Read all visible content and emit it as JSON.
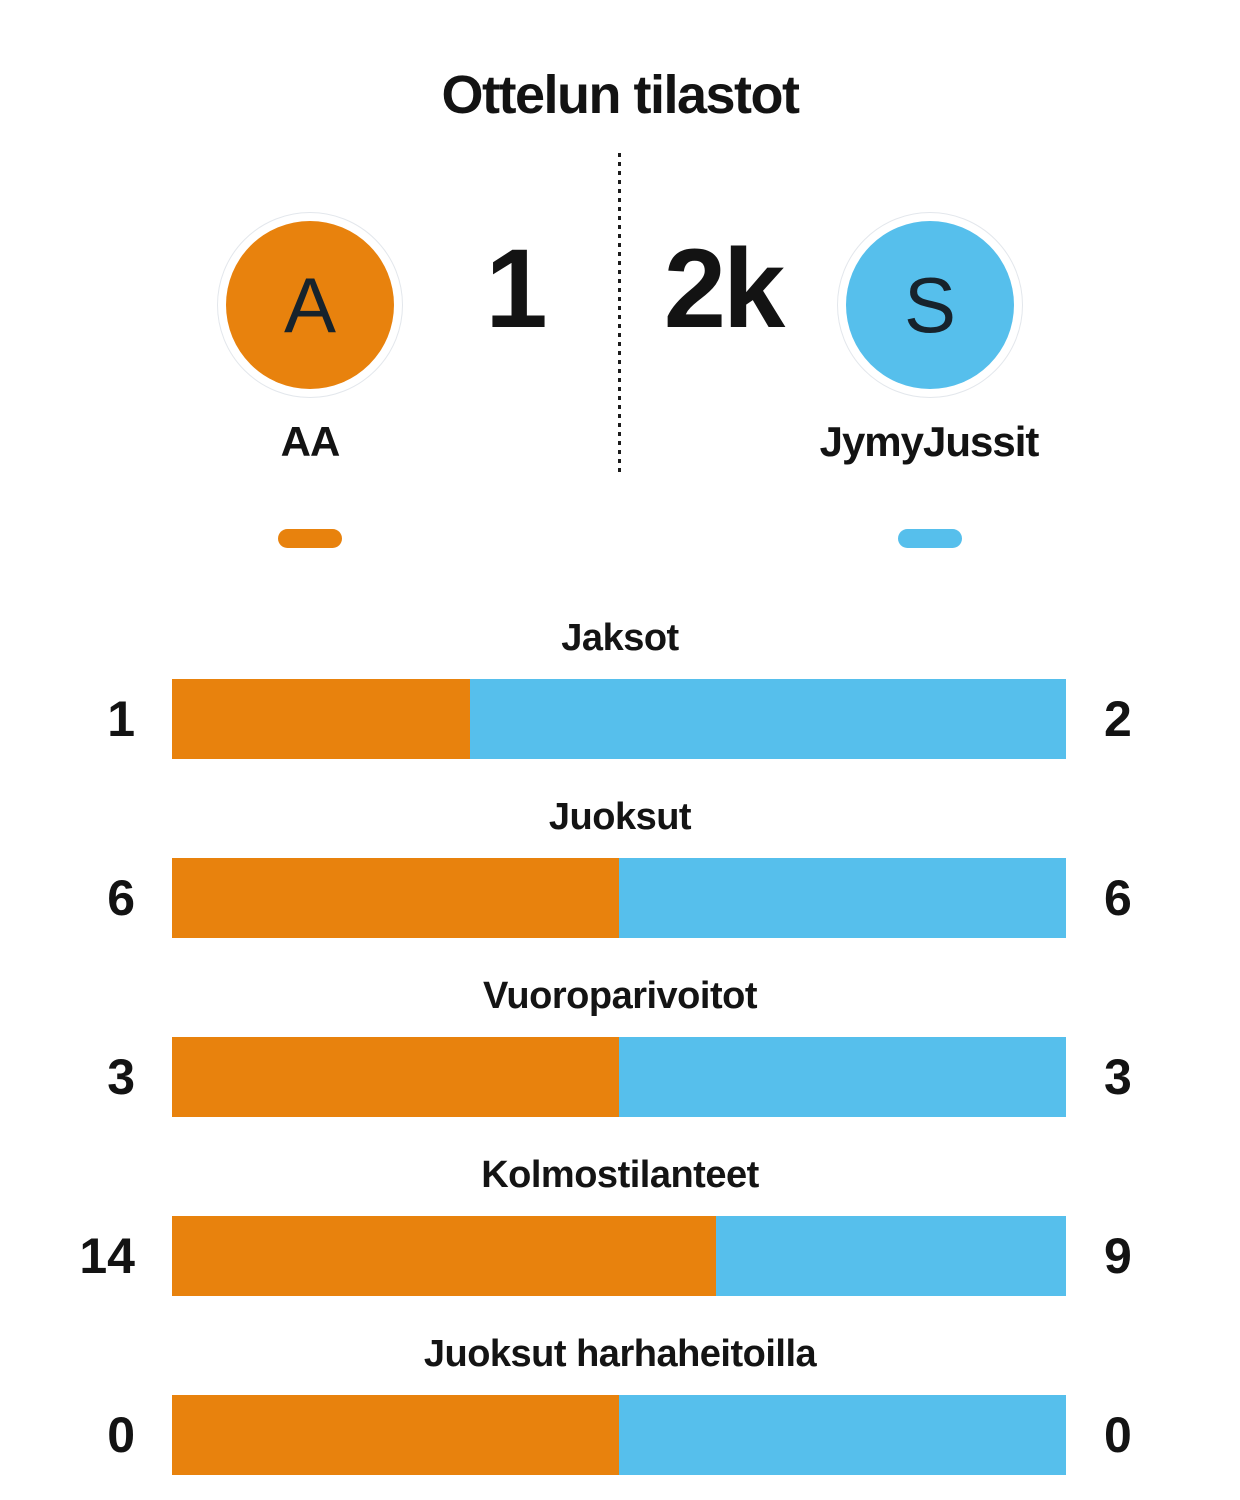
{
  "title": "Ottelun tilastot",
  "score": {
    "home": "1",
    "away": "2k"
  },
  "teams": {
    "home": {
      "name": "AA",
      "initial": "A",
      "color": "#E8820D"
    },
    "away": {
      "name": "JymyJussit",
      "initial": "S",
      "color": "#56BFEC"
    }
  },
  "stats": [
    {
      "label": "Jaksot",
      "home": 1,
      "away": 2
    },
    {
      "label": "Juoksut",
      "home": 6,
      "away": 6
    },
    {
      "label": "Vuoroparivoitot",
      "home": 3,
      "away": 3
    },
    {
      "label": "Kolmostilanteet",
      "home": 14,
      "away": 9
    },
    {
      "label": "Juoksut harhaheitoilla",
      "home": 0,
      "away": 0
    }
  ],
  "chart_data": {
    "type": "bar",
    "title": "Ottelun tilastot",
    "orientation": "horizontal-stacked-proportional",
    "categories": [
      "Jaksot",
      "Juoksut",
      "Vuoroparivoitot",
      "Kolmostilanteet",
      "Juoksut harhaheitoilla"
    ],
    "series": [
      {
        "name": "AA",
        "color": "#E8820D",
        "values": [
          1,
          6,
          3,
          14,
          0
        ]
      },
      {
        "name": "JymyJussit",
        "color": "#56BFEC",
        "values": [
          2,
          6,
          3,
          9,
          0
        ]
      }
    ],
    "legend_position": "top",
    "grid": false,
    "value_labels": "both-ends"
  }
}
